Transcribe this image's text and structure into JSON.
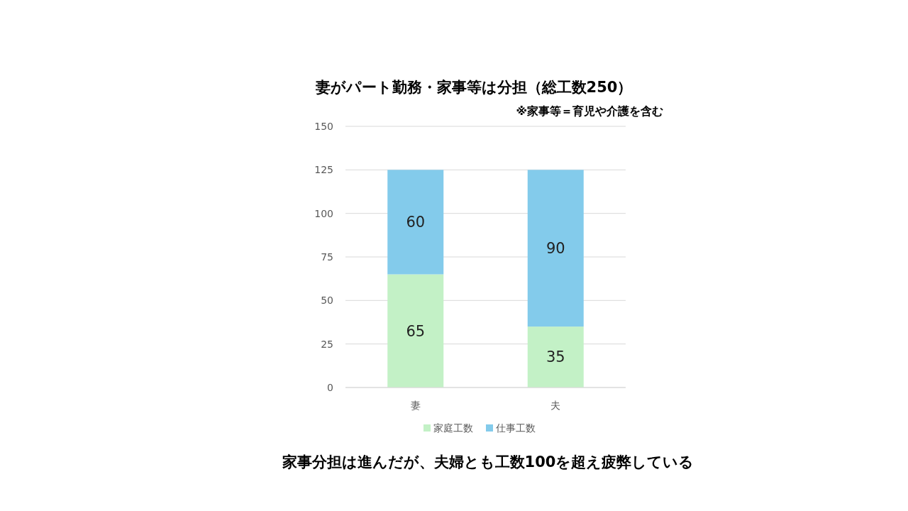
{
  "chart_data": {
    "type": "bar",
    "title": "妻がパート勤務・家事等は分担（総工数250）",
    "subtitle": "※家事等＝育児や介護を含む",
    "annotations": [
      "家事分担は進んだが、夫婦とも工数100を超え疲弊している"
    ],
    "categories": [
      "妻",
      "夫"
    ],
    "stacked": true,
    "series": [
      {
        "name": "家庭工数",
        "color": "#c3f1c6",
        "values": [
          65,
          35
        ]
      },
      {
        "name": "仕事工数",
        "color": "#83cbeb",
        "values": [
          60,
          90
        ]
      }
    ],
    "ylim": [
      0,
      150
    ],
    "yticks": [
      0,
      25,
      50,
      75,
      100,
      125,
      150
    ],
    "grid": "y",
    "legend": "bottom",
    "data_labels": true
  }
}
